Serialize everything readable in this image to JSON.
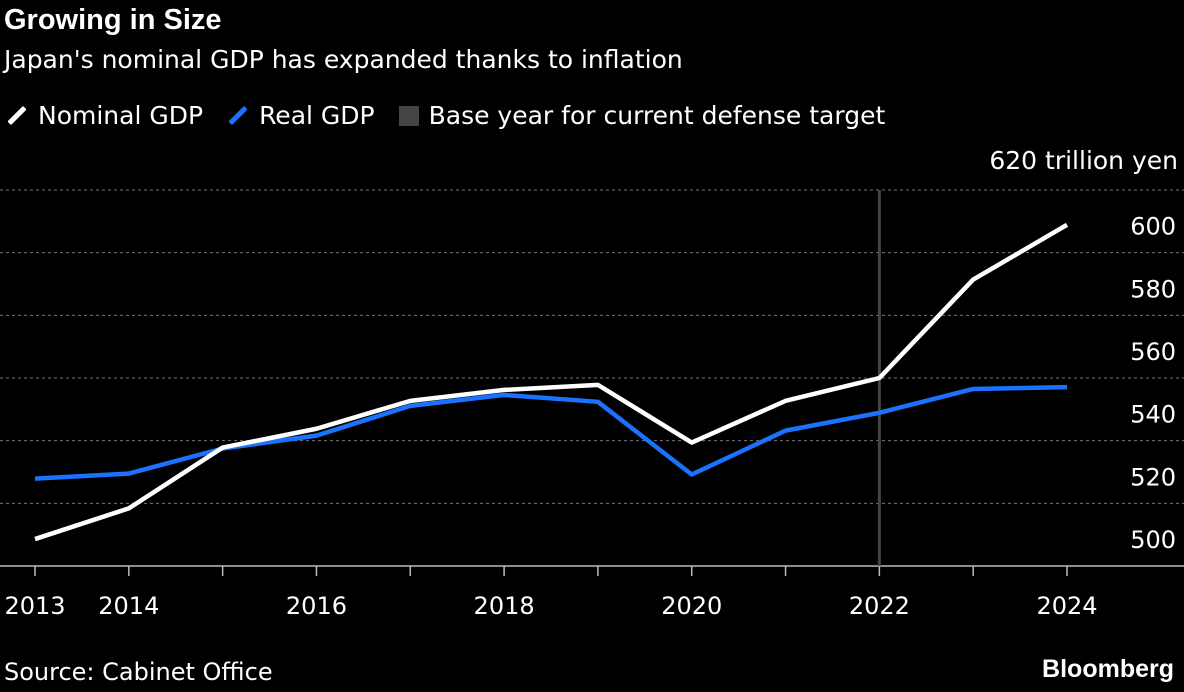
{
  "title": "Growing in Size",
  "subtitle": "Japan's nominal GDP has expanded thanks to inflation",
  "source": "Source: Cabinet Office",
  "logo": "Bloomberg",
  "chart_data": {
    "type": "line",
    "unit_label": "620 trillion yen",
    "x": [
      2013,
      2014,
      2015,
      2016,
      2017,
      2018,
      2019,
      2020,
      2021,
      2022,
      2023,
      2024
    ],
    "x_tick_labels": [
      "2013",
      "2014",
      "2016",
      "2018",
      "2020",
      "2022",
      "2024"
    ],
    "y_tick_labels": [
      "600",
      "580",
      "560",
      "540",
      "520",
      "500"
    ],
    "ylim": [
      500,
      620
    ],
    "grid": true,
    "legend_placement": "top-left",
    "series": [
      {
        "name": "Nominal GDP",
        "color": "#ffffff",
        "values": [
          508.6,
          518.4,
          537.8,
          543.8,
          552.7,
          556.2,
          557.8,
          539.4,
          552.7,
          560.0,
          591.4,
          608.9
        ]
      },
      {
        "name": "Real GDP",
        "color": "#1a73ff",
        "values": [
          527.9,
          529.5,
          537.5,
          541.6,
          551.1,
          554.6,
          552.4,
          529.2,
          543.2,
          548.9,
          556.5,
          557.1
        ]
      }
    ],
    "annotations": [
      {
        "name": "Base year for current defense target",
        "x": 2022,
        "color": "#444444"
      }
    ]
  }
}
